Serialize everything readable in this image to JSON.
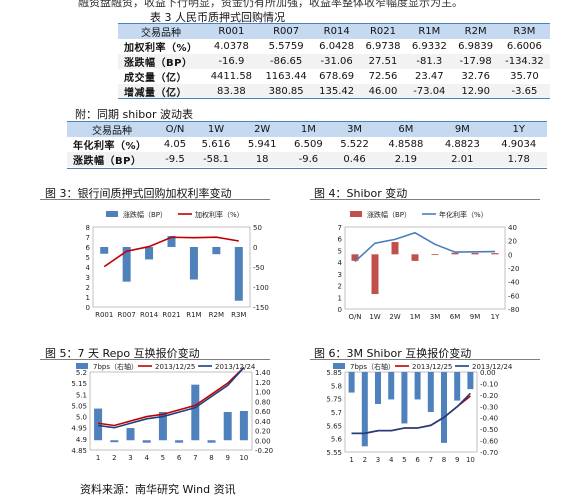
{
  "top_cut": "融资盘融资，收益下行明显，资金仍有所加强，收益率整体收窄幅度显示为主。",
  "table3": {
    "title": "表 3 人民币质押式回购情况",
    "headers": [
      "交易品种",
      "R001",
      "R007",
      "R014",
      "R021",
      "R1M",
      "R2M",
      "R3M"
    ],
    "rows": [
      [
        "加权利率（%）",
        "4.0378",
        "5.5759",
        "6.0428",
        "6.9738",
        "6.9332",
        "6.9839",
        "6.6006"
      ],
      [
        "涨跌幅（BP）",
        "-16.9",
        "-86.65",
        "-31.06",
        "27.51",
        "-81.3",
        "-17.98",
        "-134.32"
      ],
      [
        "成交量（亿）",
        "4411.58",
        "1163.44",
        "678.69",
        "72.56",
        "23.47",
        "32.76",
        "35.70"
      ],
      [
        "增减量（亿）",
        "83.38",
        "380.85",
        "135.42",
        "46.00",
        "-73.04",
        "12.90",
        "-3.65"
      ]
    ]
  },
  "table_shibor": {
    "title": "附：同期 shibor 波动表",
    "headers": [
      "交易品种",
      "O/N",
      "1W",
      "2W",
      "1M",
      "3M",
      "6M",
      "9M",
      "1Y"
    ],
    "rows": [
      [
        "年化利率（%）",
        "4.05",
        "5.616",
        "5.941",
        "6.509",
        "5.522",
        "4.8588",
        "4.8823",
        "4.9034"
      ],
      [
        "涨跌幅（BP）",
        "-9.5",
        "-58.1",
        "18",
        "-9.6",
        "0.46",
        "2.19",
        "2.01",
        "1.78"
      ]
    ]
  },
  "captions": {
    "fig3": "图 3：银行间质押式回购加权利率变动",
    "fig4": "图 4：Shibor 变动",
    "fig5": "图 5：7 天 Repo 互换报价变动",
    "fig6": "图 6：3M Shibor 互换报价变动"
  },
  "source": "资料来源：南华研究   Wind 资讯",
  "colors": {
    "bar": "#4f81bd",
    "bar2": "#c0504d",
    "line_red": "#c00000",
    "line_blue": "#1f3f7f",
    "line_light": "#4a7ebb"
  },
  "chart_data": [
    {
      "id": "fig3",
      "type": "bar",
      "categories": [
        "R001",
        "R007",
        "R014",
        "R021",
        "R1M",
        "R2M",
        "R3M"
      ],
      "series": [
        {
          "name": "涨跌幅（BP）",
          "axis": "right",
          "values": [
            -16.9,
            -86.65,
            -31.06,
            27.51,
            -81.3,
            -17.98,
            -134.32
          ]
        },
        {
          "name": "加权利率（%）",
          "axis": "left",
          "kind": "line",
          "values": [
            4.0378,
            5.5759,
            6.0428,
            6.9738,
            6.9332,
            6.9839,
            6.6006
          ]
        }
      ],
      "yleft": {
        "min": 0,
        "max": 8,
        "ticks": [
          0,
          1,
          2,
          3,
          4,
          5,
          6,
          7,
          8
        ]
      },
      "yright": {
        "min": -150,
        "max": 50,
        "ticks": [
          -150,
          -100,
          -50,
          0,
          50
        ]
      }
    },
    {
      "id": "fig4",
      "type": "bar",
      "categories": [
        "O/N",
        "1W",
        "2W",
        "1M",
        "3M",
        "6M",
        "9M",
        "1Y"
      ],
      "series": [
        {
          "name": "涨跌幅（BP）",
          "axis": "right",
          "values": [
            -9.5,
            -58.1,
            18,
            -9.6,
            0.46,
            2.19,
            2.01,
            1.78
          ]
        },
        {
          "name": "年化利率（%）",
          "axis": "left",
          "kind": "line",
          "values": [
            4.05,
            5.616,
            5.941,
            6.509,
            5.522,
            4.8588,
            4.8823,
            4.9034
          ]
        }
      ],
      "yleft": {
        "min": 0,
        "max": 7,
        "ticks": [
          0,
          1,
          2,
          3,
          4,
          5,
          6,
          7
        ]
      },
      "yright": {
        "min": -80,
        "max": 40,
        "ticks": [
          -80,
          -60,
          -40,
          -20,
          0,
          20,
          40
        ]
      }
    },
    {
      "id": "fig5",
      "type": "bar",
      "x": [
        1,
        2,
        3,
        4,
        5,
        6,
        7,
        8,
        9,
        10
      ],
      "series": [
        {
          "name": "7bps（右轴）",
          "axis": "right",
          "values": [
            0.65,
            -0.04,
            0.25,
            -0.05,
            0.58,
            -0.05,
            1.14,
            -0.05,
            0.58,
            0.6
          ]
        },
        {
          "name": "2013/12/25",
          "axis": "left",
          "kind": "line",
          "values": [
            4.97,
            4.96,
            4.98,
            5.0,
            5.01,
            5.03,
            5.05,
            5.1,
            5.15,
            5.22
          ]
        },
        {
          "name": "2013/12/24",
          "axis": "left",
          "kind": "line",
          "values": [
            4.96,
            4.95,
            4.97,
            4.99,
            5.0,
            5.02,
            5.04,
            5.09,
            5.14,
            5.22
          ]
        }
      ],
      "yleft": {
        "min": 4.85,
        "max": 5.2,
        "ticks": [
          4.85,
          4.9,
          4.95,
          5,
          5.05,
          5.1,
          5.15,
          5.2
        ]
      },
      "yright": {
        "min": -0.2,
        "max": 1.4,
        "ticks": [
          -0.2,
          0,
          0.2,
          0.4,
          0.6,
          0.8,
          1,
          1.2,
          1.4
        ]
      }
    },
    {
      "id": "fig6",
      "type": "bar",
      "x": [
        1,
        2,
        3,
        4,
        5,
        6,
        7,
        8,
        9,
        10
      ],
      "series": [
        {
          "name": "7bps（右轴）",
          "axis": "right",
          "values": [
            -0.18,
            -0.65,
            -0.28,
            -0.24,
            -0.45,
            -0.24,
            -0.35,
            -0.62,
            -0.25,
            -0.15
          ]
        },
        {
          "name": "2013/12/25",
          "axis": "left",
          "kind": "line",
          "values": [
            5.62,
            5.62,
            5.63,
            5.63,
            5.64,
            5.64,
            5.65,
            5.68,
            5.72,
            5.76
          ]
        },
        {
          "name": "2013/12/24",
          "axis": "left",
          "kind": "line",
          "values": [
            5.62,
            5.62,
            5.63,
            5.63,
            5.64,
            5.64,
            5.65,
            5.68,
            5.72,
            5.77
          ]
        }
      ],
      "yleft": {
        "min": 5.55,
        "max": 5.85,
        "ticks": [
          5.55,
          5.6,
          5.65,
          5.7,
          5.75,
          5.8,
          5.85
        ]
      },
      "yright": {
        "min": -0.7,
        "max": 0,
        "ticks": [
          -0.7,
          -0.6,
          -0.5,
          -0.4,
          -0.3,
          -0.2,
          -0.1,
          0
        ]
      }
    }
  ]
}
